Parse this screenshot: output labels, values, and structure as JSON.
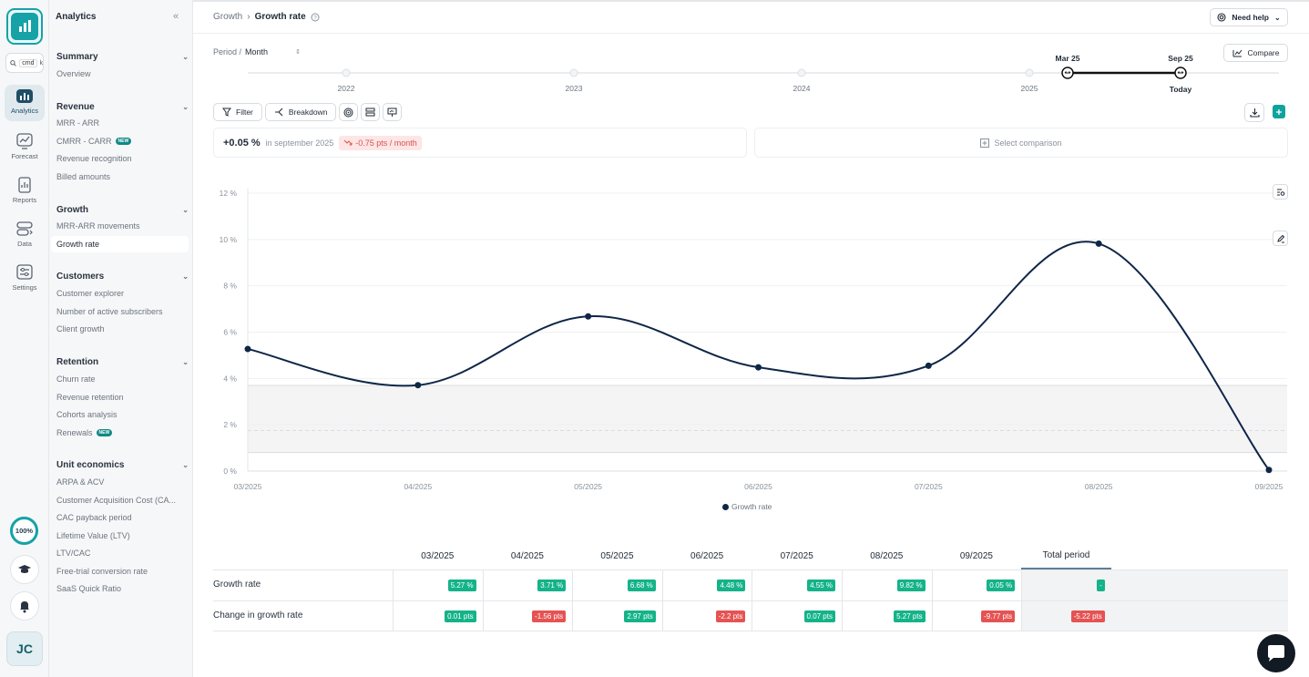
{
  "rail": {
    "search_text": "cmd",
    "search_key": "k",
    "items": [
      {
        "label": "Analytics",
        "icon": "chart-icon"
      },
      {
        "label": "Forecast",
        "icon": "forecast-icon"
      },
      {
        "label": "Reports",
        "icon": "reports-icon"
      },
      {
        "label": "Data",
        "icon": "data-icon"
      },
      {
        "label": "Settings",
        "icon": "settings-icon"
      }
    ],
    "progress": "100%",
    "avatar": "JC"
  },
  "sidebar": {
    "title": "Analytics",
    "sections": [
      {
        "title": "Summary",
        "items": [
          "Overview"
        ]
      },
      {
        "title": "Revenue",
        "items": [
          "MRR - ARR",
          "CMRR - CARR",
          "Revenue recognition",
          "Billed amounts"
        ]
      },
      {
        "title": "Growth",
        "items": [
          "MRR-ARR movements",
          "Growth rate"
        ]
      },
      {
        "title": "Customers",
        "items": [
          "Customer explorer",
          "Number of active subscribers",
          "Client growth"
        ]
      },
      {
        "title": "Retention",
        "items": [
          "Churn rate",
          "Revenue retention",
          "Cohorts analysis",
          "Renewals"
        ]
      },
      {
        "title": "Unit economics",
        "items": [
          "ARPA & ACV",
          "Customer Acquisition Cost (CA...",
          "CAC payback period",
          "Lifetime Value (LTV)",
          "LTV/CAC",
          "Free-trial conversion rate",
          "SaaS Quick Ratio"
        ]
      }
    ],
    "new_badge": "NEW"
  },
  "header": {
    "breadcrumb_parent": "Growth",
    "breadcrumb_current": "Growth rate",
    "help_label": "Need help"
  },
  "controls": {
    "period_label": "Period /",
    "period_value": "Month",
    "compare_label": "Compare",
    "filter_label": "Filter",
    "breakdown_label": "Breakdown"
  },
  "timeline": {
    "years": [
      "2022",
      "2023",
      "2024",
      "2025"
    ],
    "start_label": "Mar 25",
    "end_label": "Sep 25",
    "end_sub": "Today"
  },
  "stats": {
    "value": "+0.05 %",
    "context": "in september 2025",
    "delta": "-0.75 pts / month",
    "comparison_placeholder": "Select comparison"
  },
  "chart_data": {
    "type": "line",
    "x": [
      "03/2025",
      "04/2025",
      "05/2025",
      "06/2025",
      "07/2025",
      "08/2025",
      "09/2025"
    ],
    "series": [
      {
        "name": "Growth rate",
        "values": [
          5.27,
          3.71,
          6.68,
          4.48,
          4.55,
          9.82,
          0.05
        ],
        "color": "#0f2647"
      }
    ],
    "y_ticks": [
      "0 %",
      "2 %",
      "4 %",
      "6 %",
      "8 %",
      "10 %",
      "12 %"
    ],
    "ylim": [
      0,
      12
    ],
    "band": [
      0.8,
      3.7
    ],
    "band_mid": 1.75,
    "grid": true,
    "legend_position": "bottom-center"
  },
  "table": {
    "columns": [
      "03/2025",
      "04/2025",
      "05/2025",
      "06/2025",
      "07/2025",
      "08/2025",
      "09/2025",
      "Total period"
    ],
    "rows": [
      {
        "label": "Growth rate",
        "cells": [
          {
            "text": "5.27 %",
            "tone": "pos"
          },
          {
            "text": "3.71 %",
            "tone": "pos"
          },
          {
            "text": "6.68 %",
            "tone": "pos"
          },
          {
            "text": "4.48 %",
            "tone": "pos"
          },
          {
            "text": "4.55 %",
            "tone": "pos"
          },
          {
            "text": "9.82 %",
            "tone": "pos"
          },
          {
            "text": "0.05 %",
            "tone": "pos"
          },
          {
            "text": "-",
            "tone": "pos"
          }
        ]
      },
      {
        "label": "Change in growth rate",
        "cells": [
          {
            "text": "0.01 pts",
            "tone": "pos"
          },
          {
            "text": "-1.56 pts",
            "tone": "neg"
          },
          {
            "text": "2.97 pts",
            "tone": "pos"
          },
          {
            "text": "-2.2 pts",
            "tone": "neg"
          },
          {
            "text": "0.07 pts",
            "tone": "pos"
          },
          {
            "text": "5.27 pts",
            "tone": "pos"
          },
          {
            "text": "-9.77 pts",
            "tone": "neg"
          },
          {
            "text": "-5.22 pts",
            "tone": "neg"
          }
        ]
      }
    ]
  },
  "colors": {
    "accent": "#17a2a8",
    "line": "#0f2647",
    "positive": "#14b389",
    "negative": "#e55353"
  }
}
